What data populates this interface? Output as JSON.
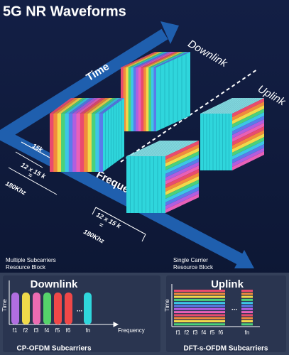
{
  "header": {
    "title": "5G NR Waveforms"
  },
  "diagram": {
    "time_axis": "Time",
    "frequency_axis": "Frequency",
    "downlink": "Downlink",
    "uplink": "Uplink",
    "subcarrier_spacing": "15k",
    "bandwidth_labels": [
      [
        "12 x 15 k",
        "=",
        "180Khz"
      ],
      [
        "12 x 15 k",
        "=",
        "180Khz"
      ]
    ]
  },
  "captions": {
    "left": [
      "Multiple Subcarriers",
      "Resource Block"
    ],
    "right": [
      "Single Carrier",
      "Resource Block"
    ]
  },
  "panels": [
    {
      "title": "Downlink",
      "y_label": "Time",
      "x_label": "Frequency",
      "subcarriers": [
        "f1",
        "f2",
        "f3",
        "f4",
        "f5",
        "f6"
      ],
      "ellipsis": "...",
      "last": "fn",
      "caption": "CP-OFDM Subcarriers"
    },
    {
      "title": "Uplink",
      "y_label": "Time",
      "subcarriers": [
        "f1",
        "f2",
        "f3",
        "f4",
        "f5",
        "f6"
      ],
      "ellipsis": "...",
      "last": "fn",
      "caption": "DFT-s-OFDM Subcarriers"
    }
  ]
}
